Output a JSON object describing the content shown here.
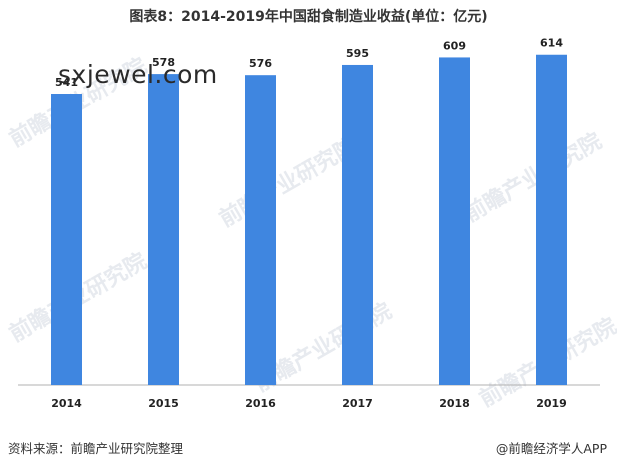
{
  "title": "图表8：2014-2019年中国甜食制造业收益(单位：亿元)",
  "watermark_site": "sxjewel.com",
  "watermark_brand": "前瞻产业研究院",
  "footer": {
    "source": "资料来源：前瞻产业研究院整理",
    "brand": "@前瞻经济学人APP"
  },
  "colors": {
    "bar": "#3f86e0",
    "axis": "#b0b0b0"
  },
  "chart_data": {
    "type": "bar",
    "title": "图表8：2014-2019年中国甜食制造业收益(单位：亿元)",
    "categories": [
      "2014",
      "2015",
      "2016",
      "2017",
      "2018",
      "2019"
    ],
    "values": [
      541,
      578,
      576,
      595,
      609,
      614
    ],
    "data_labels": [
      "541",
      "578",
      "576",
      "595",
      "609",
      "614"
    ],
    "ylim": [
      0,
      660
    ],
    "grid": false,
    "legend": "none",
    "xlabel": "",
    "ylabel": ""
  }
}
